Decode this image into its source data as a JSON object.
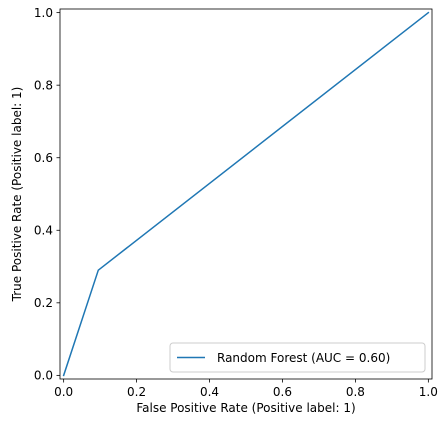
{
  "chart_data": {
    "type": "line",
    "title": "",
    "xlabel": "False Positive Rate (Positive label: 1)",
    "ylabel": "True Positive Rate (Positive label: 1)",
    "xlim": [
      -0.01,
      1.01
    ],
    "ylim": [
      -0.01,
      1.01
    ],
    "xticks": [
      0.0,
      0.2,
      0.4,
      0.6,
      0.8,
      1.0
    ],
    "xtick_labels": [
      "0.0",
      "0.2",
      "0.4",
      "0.6",
      "0.8",
      "1.0"
    ],
    "yticks": [
      0.0,
      0.2,
      0.4,
      0.6,
      0.8,
      1.0
    ],
    "ytick_labels": [
      "0.0",
      "0.2",
      "0.4",
      "0.6",
      "0.8",
      "1.0"
    ],
    "grid": false,
    "legend_position": "lower-right",
    "series": [
      {
        "name": "Random Forest (AUC = 0.60)",
        "color": "#1f77b4",
        "x": [
          0.0,
          0.095,
          1.0
        ],
        "y": [
          0.0,
          0.29,
          1.0
        ]
      }
    ]
  }
}
